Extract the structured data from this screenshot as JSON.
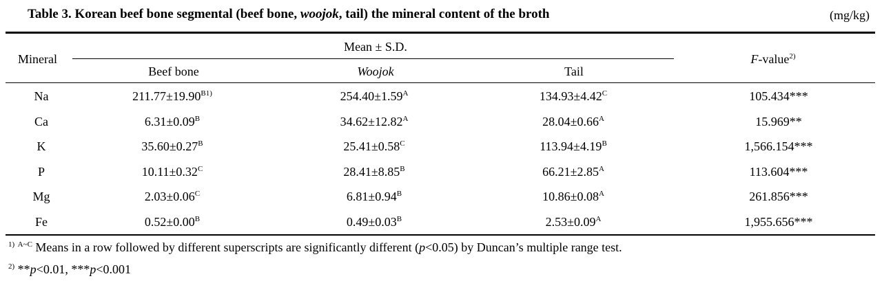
{
  "title": {
    "parts": [
      "Table 3. Korean beef bone segmental (beef bone, ",
      "woojok",
      ", tail) the mineral content of the broth"
    ],
    "unit": "(mg/kg)"
  },
  "table": {
    "header": {
      "mineral": "Mineral",
      "group": "Mean ± S.D.",
      "columns": [
        "Beef bone",
        "Woojok",
        "Tail"
      ],
      "fvalue": {
        "italic": "F",
        "text": "-value",
        "sup": "2)"
      }
    },
    "rows": [
      {
        "mineral": "Na",
        "cells": [
          {
            "text": "211.77±19.90",
            "sup": "B1)"
          },
          {
            "text": "254.40±1.59",
            "sup": "A"
          },
          {
            "text": "134.93±4.42",
            "sup": "C"
          }
        ],
        "fvalue": "105.434***"
      },
      {
        "mineral": "Ca",
        "cells": [
          {
            "text": "6.31±0.09",
            "sup": "B"
          },
          {
            "text": "34.62±12.82",
            "sup": "A"
          },
          {
            "text": "28.04±0.66",
            "sup": "A"
          }
        ],
        "fvalue": "15.969**"
      },
      {
        "mineral": "K",
        "cells": [
          {
            "text": "35.60±0.27",
            "sup": "B"
          },
          {
            "text": "25.41±0.58",
            "sup": "C"
          },
          {
            "text": "113.94±4.19",
            "sup": "B"
          }
        ],
        "fvalue": "1,566.154***"
      },
      {
        "mineral": "P",
        "cells": [
          {
            "text": "10.11±0.32",
            "sup": "C"
          },
          {
            "text": "28.41±8.85",
            "sup": "B"
          },
          {
            "text": "66.21±2.85",
            "sup": "A"
          }
        ],
        "fvalue": "113.604***"
      },
      {
        "mineral": "Mg",
        "cells": [
          {
            "text": "2.03±0.06",
            "sup": "C"
          },
          {
            "text": "6.81±0.94",
            "sup": "B"
          },
          {
            "text": "10.86±0.08",
            "sup": "A"
          }
        ],
        "fvalue": "261.856***"
      },
      {
        "mineral": "Fe",
        "cells": [
          {
            "text": "0.52±0.00",
            "sup": "B"
          },
          {
            "text": "0.49±0.03",
            "sup": "B"
          },
          {
            "text": "2.53±0.09",
            "sup": "A"
          }
        ],
        "fvalue": "1,955.656***"
      }
    ]
  },
  "footnotes": [
    {
      "mark": "1)",
      "sup": "A~C",
      "parts": [
        "Means in a row followed by different superscripts are significantly different (",
        "p",
        "<0.05) by Duncan’s multiple range test."
      ]
    },
    {
      "mark": "2)",
      "parts": [
        "**",
        "p",
        "<0.01, ***",
        "p",
        "<0.001"
      ]
    }
  ]
}
